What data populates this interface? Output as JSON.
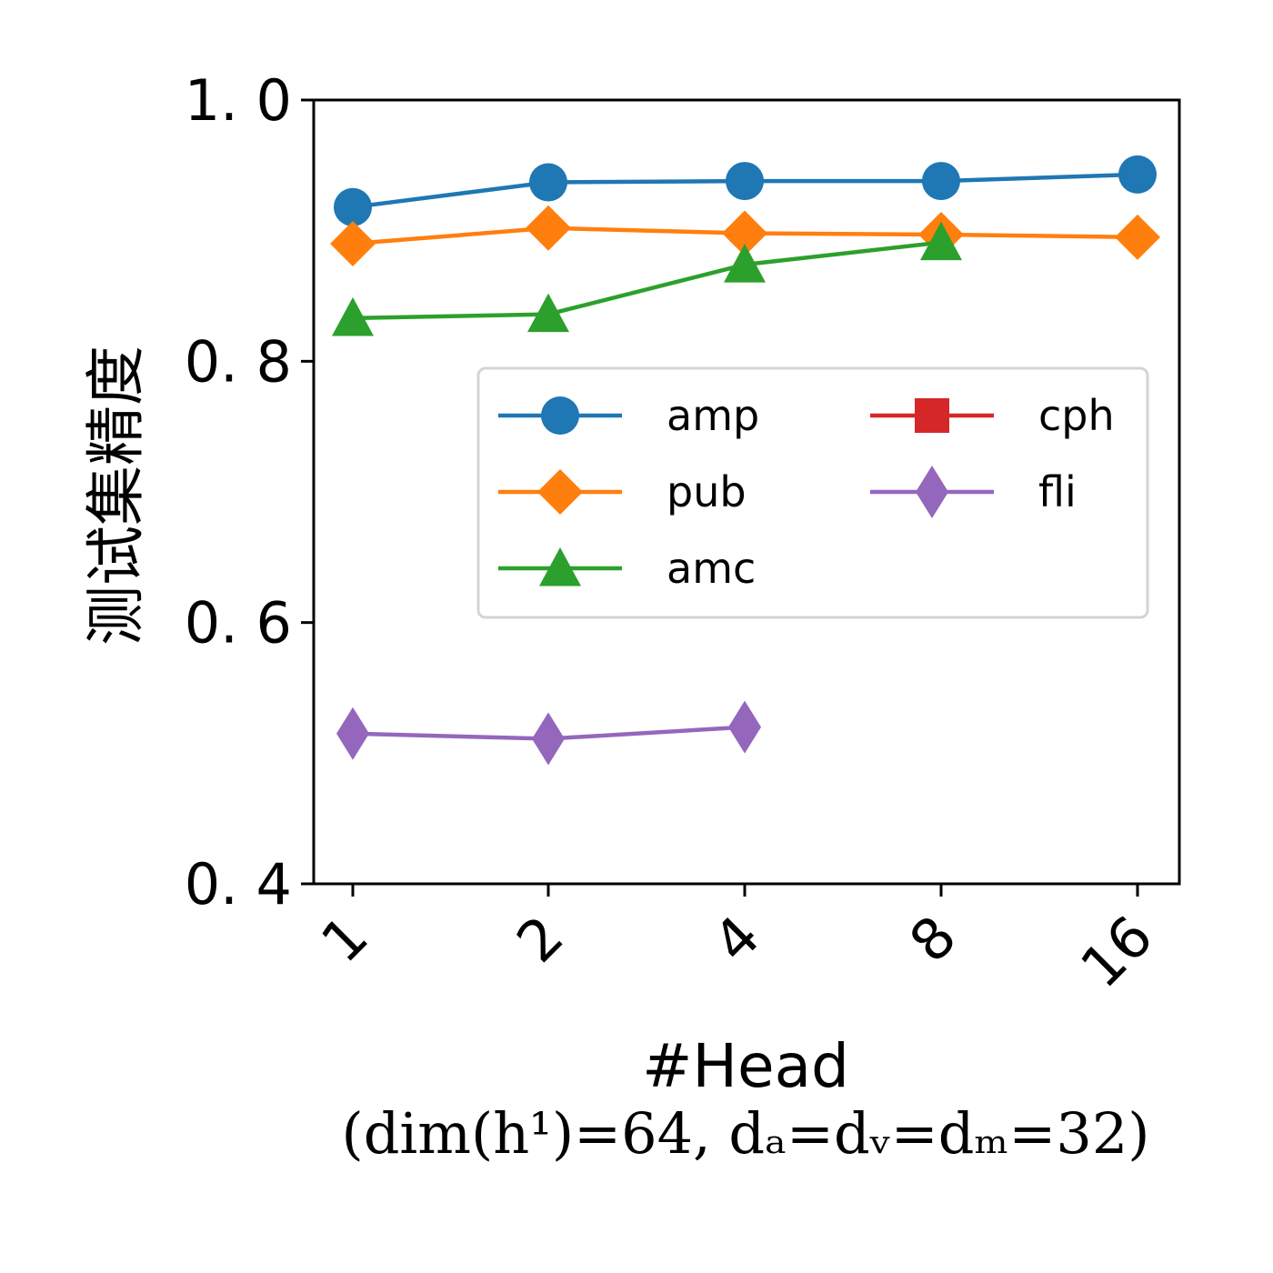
{
  "chart_data": {
    "type": "line",
    "xlabel": "#Head",
    "xlabel_detail": "(dim(h¹)=64,   dₐ=dᵥ=dₘ=32)",
    "ylabel": "测试集精度",
    "categories": [
      "1",
      "2",
      "4",
      "8",
      "16"
    ],
    "ylim": [
      0.4,
      1.0
    ],
    "yticks": [
      0.4,
      0.6,
      0.8,
      1.0
    ],
    "ytick_labels": [
      "0. 4",
      "0. 6",
      "0. 8",
      "1. 0"
    ],
    "grid": false,
    "legend_position": "center-right",
    "series": [
      {
        "name": "amp",
        "color": "#1f77b4",
        "marker": "circle",
        "values": [
          0.918,
          0.937,
          0.938,
          0.938,
          0.943
        ]
      },
      {
        "name": "pub",
        "color": "#ff7f0e",
        "marker": "diamond",
        "values": [
          0.89,
          0.902,
          0.898,
          0.897,
          0.895
        ]
      },
      {
        "name": "amc",
        "color": "#2ca02c",
        "marker": "triangle",
        "values": [
          0.833,
          0.836,
          0.874,
          0.891,
          null
        ]
      },
      {
        "name": "cph",
        "color": "#d62728",
        "marker": "square",
        "values": [
          null,
          null,
          null,
          null,
          null
        ]
      },
      {
        "name": "fli",
        "color": "#9467bd",
        "marker": "thin-diamond",
        "values": [
          0.515,
          0.511,
          0.52,
          null,
          null
        ]
      }
    ]
  }
}
